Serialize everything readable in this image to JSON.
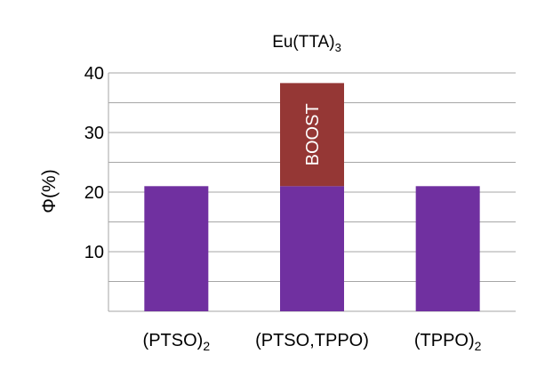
{
  "chart_data": {
    "type": "bar",
    "title": "Eu(TTA)",
    "title_subscript": "3",
    "ylabel": "Φ(%)",
    "xlabel": "",
    "ylim": [
      0,
      40
    ],
    "yticks": [
      "10",
      "20",
      "30",
      "40"
    ],
    "grid": true,
    "categories": [
      {
        "main": "(PTSO)",
        "sub": "2"
      },
      {
        "main": "(PTSO,TPPO)",
        "sub": ""
      },
      {
        "main": "(TPPO)",
        "sub": "2"
      }
    ],
    "series": [
      {
        "values": [
          21,
          21,
          21
        ],
        "color": "#7030a0"
      },
      {
        "values": [
          0,
          17.3,
          0
        ],
        "color": "#953735",
        "annotation": "BOOST"
      }
    ]
  }
}
